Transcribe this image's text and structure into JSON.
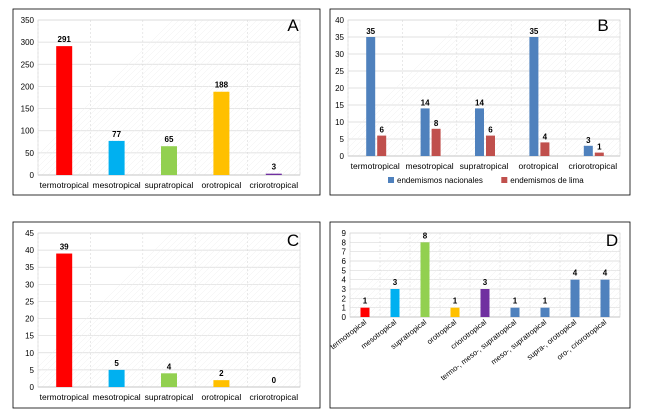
{
  "chart_data": [
    {
      "panel": "A",
      "type": "bar",
      "categories": [
        "termotropical",
        "mesotropical",
        "supratropical",
        "orotropical",
        "criorotropical"
      ],
      "values": [
        291,
        77,
        65,
        188,
        3
      ],
      "value_labels": [
        "291",
        "77",
        "65",
        "188",
        "3"
      ],
      "colors": [
        "#ff0000",
        "#00b0f0",
        "#92d050",
        "#ffc000",
        "#7030a0"
      ],
      "ylim": [
        0,
        350
      ],
      "yticks": [
        0,
        50,
        100,
        150,
        200,
        250,
        300,
        350
      ],
      "grid": true,
      "legend": "none"
    },
    {
      "panel": "B",
      "type": "bar",
      "categories": [
        "termotropical",
        "mesotropical",
        "supratropical",
        "orotropical",
        "criorotropical"
      ],
      "series": [
        {
          "name": "endemismos nacionales",
          "values": [
            35,
            14,
            14,
            35,
            3
          ],
          "color": "#4f81bd"
        },
        {
          "name": "endemismos de lima",
          "values": [
            6,
            8,
            6,
            4,
            1
          ],
          "color": "#c0504d"
        }
      ],
      "ylim": [
        0,
        40
      ],
      "yticks": [
        0,
        5,
        10,
        15,
        20,
        25,
        30,
        35,
        40
      ],
      "grid": true,
      "legend": "bottom"
    },
    {
      "panel": "C",
      "type": "bar",
      "categories": [
        "termotropical",
        "mesotropical",
        "supratropical",
        "orotropical",
        "criorotropical"
      ],
      "values": [
        39,
        5,
        4,
        2,
        0
      ],
      "value_labels": [
        "39",
        "5",
        "4",
        "2",
        "0"
      ],
      "colors": [
        "#ff0000",
        "#00b0f0",
        "#92d050",
        "#ffc000",
        "#7030a0"
      ],
      "ylim": [
        0,
        45
      ],
      "yticks": [
        0,
        5,
        10,
        15,
        20,
        25,
        30,
        35,
        40,
        45
      ],
      "grid": true,
      "legend": "none"
    },
    {
      "panel": "D",
      "type": "bar",
      "categories": [
        "termotropical",
        "mesotropical",
        "supratropical",
        "orotropical",
        "criorotropical",
        "termo-, meso-, supratropical",
        "meso-, supratropical",
        "supra-, orotropical",
        "oro-, criorotropical"
      ],
      "values": [
        1,
        3,
        8,
        1,
        3,
        1,
        1,
        4,
        4
      ],
      "value_labels": [
        "1",
        "3",
        "8",
        "1",
        "3",
        "1",
        "1",
        "4",
        "4"
      ],
      "colors": [
        "#ff0000",
        "#00b0f0",
        "#92d050",
        "#ffc000",
        "#7030a0",
        "#4f81bd",
        "#4f81bd",
        "#4f81bd",
        "#4f81bd"
      ],
      "ylim": [
        0,
        9
      ],
      "yticks": [
        0,
        1,
        2,
        3,
        4,
        5,
        6,
        7,
        8,
        9
      ],
      "grid": true,
      "legend": "none"
    }
  ],
  "style": {
    "panel_border": "#000000",
    "grid_color": "#d9d9d9",
    "axis_color": "#bfbfbf",
    "text_color": "#000000"
  }
}
